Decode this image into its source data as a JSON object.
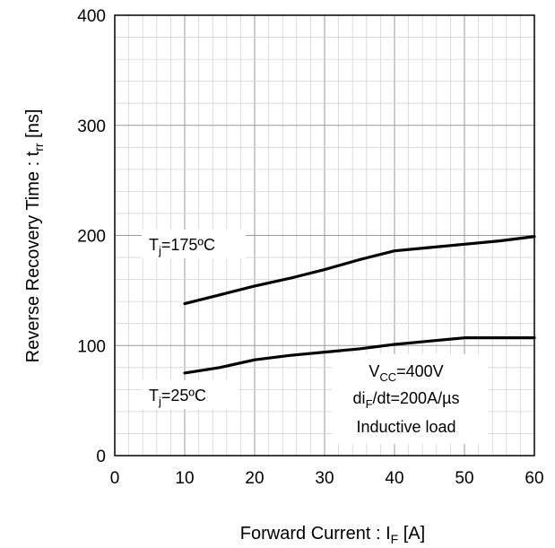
{
  "chart_data": {
    "type": "line",
    "xlabel": {
      "main": "Forward Current  : I",
      "sub": "F",
      "unit": " [A]"
    },
    "ylabel": {
      "main": "Reverse Recovery Time  : t",
      "sub": "rr",
      "unit": " [ns]"
    },
    "xlim": [
      0,
      60
    ],
    "ylim": [
      0,
      400
    ],
    "x_ticks": [
      0,
      10,
      20,
      30,
      40,
      50,
      60
    ],
    "y_ticks": [
      0,
      100,
      200,
      300,
      400
    ],
    "grid": {
      "major": true,
      "minor": true,
      "x_minor_step": 2,
      "y_minor_step": 20
    },
    "series": [
      {
        "label": {
          "main": "T",
          "sub": "j",
          "rest": "=175ºC"
        },
        "x": [
          10,
          15,
          20,
          25,
          30,
          35,
          40,
          45,
          50,
          55,
          60
        ],
        "y": [
          138,
          146,
          154,
          161,
          169,
          178,
          186,
          189,
          192,
          195,
          199
        ]
      },
      {
        "label": {
          "main": "T",
          "sub": "j",
          "rest": "=25ºC"
        },
        "x": [
          10,
          15,
          20,
          25,
          30,
          35,
          40,
          45,
          50,
          55,
          60
        ],
        "y": [
          75,
          80,
          87,
          91,
          94,
          97,
          101,
          104,
          107,
          107,
          107
        ]
      }
    ],
    "conditions": [
      {
        "main": "V",
        "sub": "CC",
        "rest": "=400V"
      },
      {
        "main": "di",
        "sub": "F",
        "rest": "/dt=200A/µs"
      },
      {
        "main": "Inductive load",
        "sub": "",
        "rest": ""
      }
    ]
  }
}
